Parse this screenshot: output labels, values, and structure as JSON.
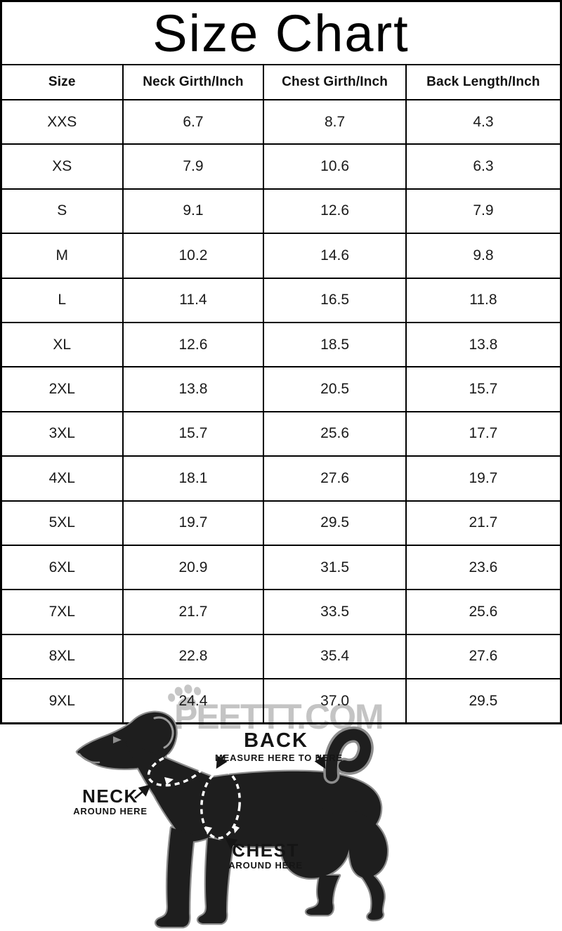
{
  "page": {
    "title": "Size Chart"
  },
  "watermark": {
    "text": "PEETTT.COM",
    "color": "#c4c4c4",
    "icon": "paw-print"
  },
  "chart_data": {
    "type": "table",
    "title": "Size Chart",
    "columns": [
      "Size",
      "Neck Girth/Inch",
      "Chest Girth/Inch",
      "Back Length/Inch"
    ],
    "rows": [
      [
        "XXS",
        "6.7",
        "8.7",
        "4.3"
      ],
      [
        "XS",
        "7.9",
        "10.6",
        "6.3"
      ],
      [
        "S",
        "9.1",
        "12.6",
        "7.9"
      ],
      [
        "M",
        "10.2",
        "14.6",
        "9.8"
      ],
      [
        "L",
        "11.4",
        "16.5",
        "11.8"
      ],
      [
        "XL",
        "12.6",
        "18.5",
        "13.8"
      ],
      [
        "2XL",
        "13.8",
        "20.5",
        "15.7"
      ],
      [
        "3XL",
        "15.7",
        "25.6",
        "17.7"
      ],
      [
        "4XL",
        "18.1",
        "27.6",
        "19.7"
      ],
      [
        "5XL",
        "19.7",
        "29.5",
        "21.7"
      ],
      [
        "6XL",
        "20.9",
        "31.5",
        "23.6"
      ],
      [
        "7XL",
        "21.7",
        "33.5",
        "25.6"
      ],
      [
        "8XL",
        "22.8",
        "35.4",
        "27.6"
      ],
      [
        "9XL",
        "24.4",
        "37.0",
        "29.5"
      ]
    ]
  },
  "diagram": {
    "back_label": "BACK",
    "back_sublabel": "MEASURE HERE TO HERE",
    "neck_label": "NECK",
    "neck_sublabel": "AROUND HERE",
    "chest_label": "CHEST",
    "chest_sublabel": "AROUND HERE",
    "colors": {
      "dog_fill": "#1e1e1e",
      "dog_outline": "#8d8d8d",
      "measure_line": "#ffffff"
    }
  }
}
